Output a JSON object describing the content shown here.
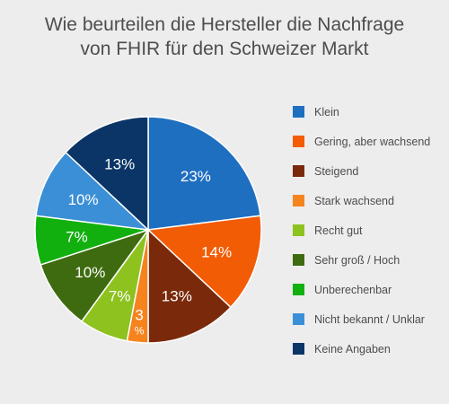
{
  "chart_data": {
    "type": "pie",
    "title_lines": [
      "Wie beurteilen die Hersteller die Nachfrage",
      "von FHIR für den Schweizer Markt"
    ],
    "legend_position": "right",
    "unit": "%",
    "slices": [
      {
        "label": "Klein",
        "value": 23,
        "display": "23%",
        "color": "#1f6fc0"
      },
      {
        "label": "Gering, aber wachsend",
        "value": 14,
        "display": "14%",
        "color": "#f25c05"
      },
      {
        "label": "Steigend",
        "value": 13,
        "display": "13%",
        "color": "#7a2a0a"
      },
      {
        "label": "Stark wachsend",
        "value": 3,
        "display": "3%",
        "color": "#f5841f"
      },
      {
        "label": "Recht gut",
        "value": 7,
        "display": "7%",
        "color": "#8dc21f"
      },
      {
        "label": "Sehr groß / Hoch",
        "value": 10,
        "display": "10%",
        "color": "#3f6b10"
      },
      {
        "label": "Unberechenbar",
        "value": 7,
        "display": "7%",
        "color": "#12b00f"
      },
      {
        "label": "Nicht bekannt / Unklar",
        "value": 10,
        "display": "10%",
        "color": "#3b8fd6"
      },
      {
        "label": "Keine Angaben",
        "value": 13,
        "display": "13%",
        "color": "#0a3566"
      }
    ]
  }
}
